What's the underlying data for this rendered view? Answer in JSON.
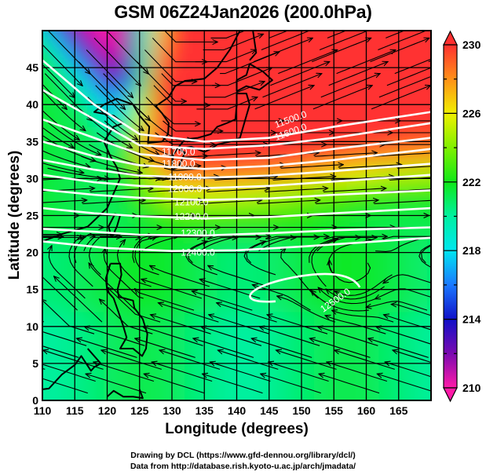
{
  "title": "GSM 06Z24Jan2026 (200.0hPa)",
  "chart_data": {
    "type": "heatmap",
    "title": "GSM 06Z24Jan2026 (200.0hPa)",
    "xlabel": "Longitude (degrees)",
    "ylabel": "Latitude  (degrees)",
    "xlim": [
      110,
      170
    ],
    "ylim": [
      0,
      50
    ],
    "xticks": [
      "110",
      "115",
      "120",
      "125",
      "130",
      "135",
      "140",
      "145",
      "150",
      "155",
      "160",
      "165"
    ],
    "yticks": [
      "0",
      "5",
      "10",
      "15",
      "20",
      "25",
      "30",
      "35",
      "40",
      "45"
    ],
    "grid": true,
    "colorbar": {
      "min": 210,
      "max": 230,
      "ticks": [
        "230",
        "226",
        "222",
        "218",
        "214",
        "210"
      ],
      "stops": [
        {
          "value": 210,
          "color": "#ff1aa8"
        },
        {
          "value": 212,
          "color": "#7a0ab0"
        },
        {
          "value": 214,
          "color": "#1010c8"
        },
        {
          "value": 216,
          "color": "#1a78ff"
        },
        {
          "value": 218,
          "color": "#00e6f0"
        },
        {
          "value": 220,
          "color": "#00f0a0"
        },
        {
          "value": 222,
          "color": "#10e818"
        },
        {
          "value": 224,
          "color": "#80f000"
        },
        {
          "value": 226,
          "color": "#f0f000"
        },
        {
          "value": 228,
          "color": "#ff9018"
        },
        {
          "value": 230,
          "color": "#ff3030"
        }
      ],
      "extend": "both",
      "location": "right"
    },
    "contours": {
      "color": "#ffffff",
      "labels": [
        "11500.0",
        "11600.0",
        "11700.0",
        "11800.0",
        "11900.0",
        "12000.0",
        "12100.0",
        "12200.0",
        "12300.0",
        "12400.0",
        "12500.0"
      ]
    },
    "overlay": "streamlines"
  },
  "credits": {
    "line1": "Drawing by DCL (https://www.gfd-dennou.org/library/dcl/)",
    "line2": "Data from http://database.rish.kyoto-u.ac.jp/arch/jmadata/"
  }
}
